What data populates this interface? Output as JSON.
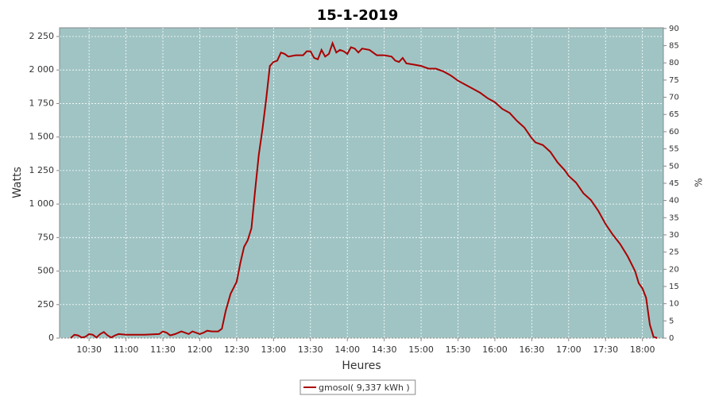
{
  "chart_data": {
    "type": "line",
    "title": "15-1-2019",
    "x_label": "Heures",
    "y_label": "Watts",
    "y2_label": "%",
    "x": [
      "10:15",
      "10:18",
      "10:21",
      "10:24",
      "10:27",
      "10:30",
      "10:33",
      "10:36",
      "10:39",
      "10:42",
      "10:45",
      "10:48",
      "10:51",
      "10:54",
      "11:00",
      "11:15",
      "11:27",
      "11:30",
      "11:33",
      "11:36",
      "11:40",
      "11:45",
      "11:48",
      "11:51",
      "11:54",
      "11:57",
      "12:00",
      "12:03",
      "12:06",
      "12:10",
      "12:15",
      "12:18",
      "12:21",
      "12:25",
      "12:30",
      "12:33",
      "12:36",
      "12:39",
      "12:42",
      "12:45",
      "12:48",
      "12:51",
      "12:54",
      "12:57",
      "13:00",
      "13:03",
      "13:06",
      "13:09",
      "13:12",
      "13:18",
      "13:24",
      "13:27",
      "13:30",
      "13:33",
      "13:36",
      "13:39",
      "13:42",
      "13:45",
      "13:48",
      "13:51",
      "13:54",
      "13:57",
      "14:00",
      "14:03",
      "14:06",
      "14:09",
      "14:12",
      "14:18",
      "14:24",
      "14:30",
      "14:36",
      "14:39",
      "14:42",
      "14:45",
      "14:48",
      "14:54",
      "15:00",
      "15:06",
      "15:12",
      "15:18",
      "15:24",
      "15:30",
      "15:36",
      "15:42",
      "15:48",
      "15:54",
      "16:00",
      "16:06",
      "16:12",
      "16:18",
      "16:24",
      "16:30",
      "16:33",
      "16:39",
      "16:45",
      "16:51",
      "16:57",
      "17:00",
      "17:06",
      "17:12",
      "17:18",
      "17:24",
      "17:30",
      "17:36",
      "17:42",
      "17:48",
      "17:54",
      "17:57",
      "18:00",
      "18:03",
      "18:06",
      "18:09",
      "18:12"
    ],
    "series": [
      {
        "name": "gmosol( 9,337 kWh )",
        "color": "#aa0000",
        "values": [
          0,
          25,
          20,
          5,
          10,
          30,
          25,
          5,
          30,
          45,
          20,
          5,
          20,
          30,
          25,
          25,
          30,
          50,
          40,
          20,
          30,
          50,
          40,
          30,
          50,
          40,
          30,
          40,
          55,
          50,
          50,
          70,
          200,
          330,
          420,
          560,
          680,
          730,
          820,
          1100,
          1370,
          1560,
          1780,
          2030,
          2060,
          2070,
          2130,
          2120,
          2100,
          2110,
          2110,
          2140,
          2140,
          2090,
          2080,
          2150,
          2100,
          2120,
          2200,
          2130,
          2150,
          2140,
          2120,
          2170,
          2160,
          2130,
          2160,
          2150,
          2110,
          2110,
          2100,
          2070,
          2060,
          2090,
          2050,
          2040,
          2030,
          2010,
          2010,
          1990,
          1960,
          1920,
          1890,
          1860,
          1830,
          1790,
          1760,
          1710,
          1680,
          1620,
          1570,
          1490,
          1460,
          1440,
          1390,
          1310,
          1250,
          1210,
          1160,
          1080,
          1030,
          950,
          850,
          770,
          700,
          610,
          500,
          410,
          370,
          300,
          100,
          10,
          0
        ]
      }
    ],
    "xlim": [
      "10:06",
      "18:17"
    ],
    "xticks": [
      "10:30",
      "11:00",
      "11:30",
      "12:00",
      "12:30",
      "13:00",
      "13:30",
      "14:00",
      "14:30",
      "15:00",
      "15:30",
      "16:00",
      "16:30",
      "17:00",
      "17:30",
      "18:00"
    ],
    "ylim": [
      0,
      2315
    ],
    "yticks": [
      0,
      250,
      500,
      750,
      {
        "value": 1000,
        "label": "1 000"
      },
      {
        "value": 1250,
        "label": "1 250"
      },
      {
        "value": 1500,
        "label": "1 500"
      },
      {
        "value": 1750,
        "label": "1 750"
      },
      {
        "value": 2000,
        "label": "2 000"
      },
      {
        "value": 2250,
        "label": "2 250"
      }
    ],
    "y2lim": [
      0,
      90.2
    ],
    "y2ticks": [
      0,
      5,
      10,
      15,
      20,
      25,
      30,
      35,
      40,
      45,
      50,
      55,
      60,
      65,
      70,
      75,
      80,
      85,
      90
    ],
    "grid": true,
    "legend": "bottom",
    "plot_background": "#a0c4c4"
  }
}
